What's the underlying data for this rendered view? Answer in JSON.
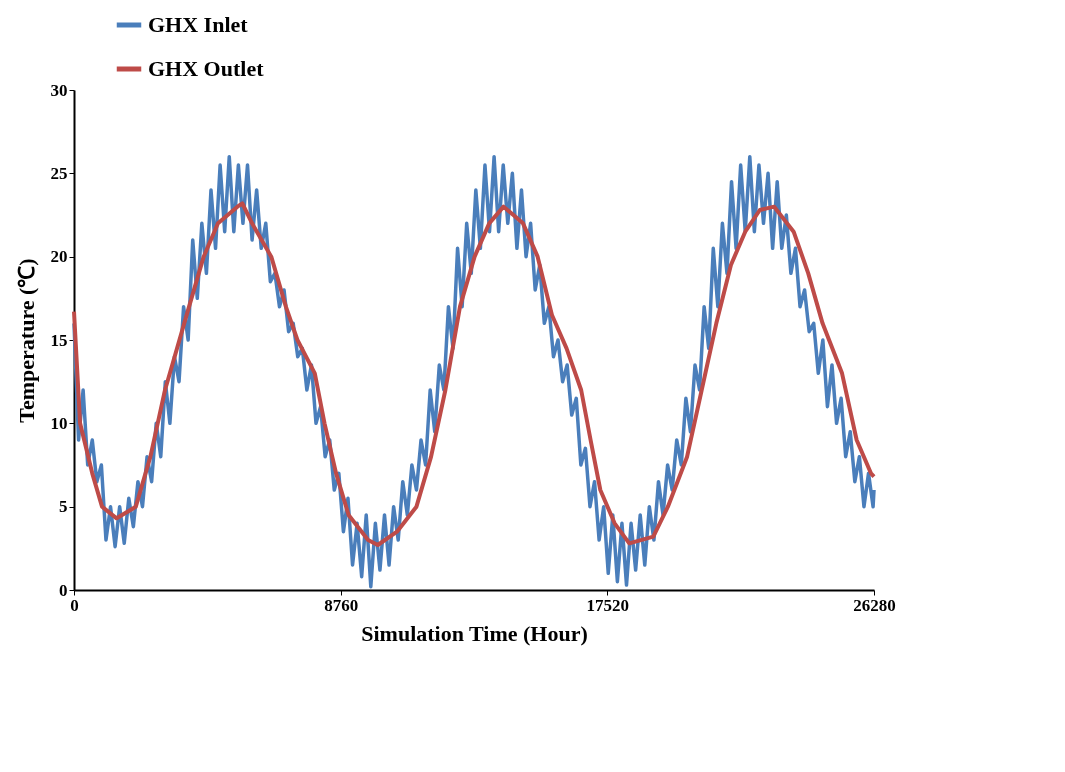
{
  "chart_data": {
    "type": "line",
    "xlabel": "Simulation Time (Hour)",
    "ylabel": "Temperature (℃)",
    "xlim": [
      0,
      26280
    ],
    "xticks": [
      0,
      8760,
      17520,
      26280
    ],
    "ylim": [
      0,
      30
    ],
    "yticks": [
      0,
      5,
      10,
      15,
      20,
      25,
      30
    ],
    "grid": false,
    "legend": "top left",
    "line_style": "solid",
    "marker": "none",
    "series": [
      {
        "name": "GHX Inlet",
        "color": "#4a7ebb",
        "x": [
          0,
          150,
          300,
          450,
          600,
          750,
          900,
          1050,
          1200,
          1350,
          1500,
          1650,
          1800,
          1950,
          2100,
          2250,
          2400,
          2550,
          2700,
          2850,
          3000,
          3150,
          3300,
          3450,
          3600,
          3750,
          3900,
          4050,
          4200,
          4350,
          4500,
          4650,
          4800,
          4950,
          5100,
          5250,
          5400,
          5550,
          5700,
          5850,
          6000,
          6150,
          6300,
          6450,
          6600,
          6750,
          6900,
          7050,
          7200,
          7350,
          7500,
          7650,
          7800,
          7950,
          8100,
          8250,
          8400,
          8550,
          8700,
          8850,
          9000,
          9150,
          9300,
          9450,
          9600,
          9750,
          9900,
          10050,
          10200,
          10350,
          10500,
          10650,
          10800,
          10950,
          11100,
          11250,
          11400,
          11550,
          11700,
          11850,
          12000,
          12150,
          12300,
          12450,
          12600,
          12750,
          12900,
          13050,
          13200,
          13350,
          13500,
          13650,
          13800,
          13950,
          14100,
          14250,
          14400,
          14550,
          14700,
          14850,
          15000,
          15150,
          15300,
          15450,
          15600,
          15750,
          15900,
          16050,
          16200,
          16350,
          16500,
          16650,
          16800,
          16950,
          17100,
          17250,
          17400,
          17550,
          17700,
          17850,
          18000,
          18150,
          18300,
          18450,
          18600,
          18750,
          18900,
          19050,
          19200,
          19350,
          19500,
          19650,
          19800,
          19950,
          20100,
          20250,
          20400,
          20550,
          20700,
          20850,
          21000,
          21150,
          21300,
          21450,
          21600,
          21750,
          21900,
          22050,
          22200,
          22350,
          22500,
          22650,
          22800,
          22950,
          23100,
          23250,
          23400,
          23550,
          23700,
          23850,
          24000,
          24150,
          24300,
          24450,
          24600,
          24750,
          24900,
          25050,
          25200,
          25350,
          25500,
          25650,
          25800,
          25950,
          26100,
          26250,
          26280
        ],
        "values": [
          16,
          9,
          12,
          7.5,
          9,
          6.5,
          7.5,
          3,
          5,
          2.6,
          5,
          2.8,
          5.5,
          3.8,
          6.5,
          5,
          8,
          6.5,
          10,
          8,
          12.5,
          10,
          14,
          12.5,
          17,
          15,
          21,
          17.5,
          22,
          19,
          24,
          20.5,
          25.5,
          21.5,
          26,
          21.5,
          25.5,
          22,
          25.5,
          21,
          24,
          20.5,
          22,
          18.5,
          19,
          17,
          18,
          15.5,
          16,
          14,
          14.5,
          12,
          13.5,
          10,
          11,
          8,
          9,
          6,
          7,
          3.5,
          5.5,
          1.5,
          4,
          0.8,
          4.5,
          0.2,
          4,
          1.2,
          4.5,
          1.5,
          5,
          3,
          6.5,
          4.5,
          7.5,
          6,
          9,
          7.5,
          12,
          9.5,
          13.5,
          12,
          17,
          14.5,
          20.5,
          17,
          22,
          19,
          24,
          20.5,
          25.5,
          21.5,
          26,
          21.5,
          25.5,
          22,
          25,
          20.5,
          24,
          20,
          22,
          18,
          19.5,
          16,
          17,
          14,
          15,
          12.5,
          13.5,
          10.5,
          11.5,
          7.5,
          8.5,
          5,
          6.5,
          3,
          5,
          1,
          4.5,
          0.5,
          4,
          0.3,
          4,
          1.2,
          4.5,
          1.5,
          5,
          3,
          6.5,
          4.5,
          7.5,
          6,
          9,
          7.5,
          11.5,
          9.5,
          13.5,
          12,
          17,
          14.5,
          20.5,
          17,
          22,
          19,
          24.5,
          20.5,
          25.5,
          21.5,
          26,
          21.5,
          25.5,
          22,
          25,
          20.5,
          24.5,
          20.5,
          22.5,
          19,
          20.5,
          17,
          18,
          15.5,
          16,
          13,
          15,
          11,
          13.5,
          10,
          11.5,
          8,
          9.5,
          6.5,
          8,
          5,
          7,
          5,
          6
        ]
      },
      {
        "name": "GHX Outlet",
        "color": "#be4b48",
        "x": [
          0,
          200,
          600,
          920,
          1400,
          2030,
          2510,
          2990,
          3780,
          4260,
          4730,
          5370,
          5530,
          5850,
          6480,
          6960,
          7340,
          7910,
          8230,
          8610,
          9020,
          9660,
          9980,
          10610,
          11250,
          11730,
          12200,
          12680,
          13160,
          13640,
          14110,
          14750,
          15230,
          15700,
          16180,
          16660,
          16970,
          17290,
          17760,
          18240,
          19030,
          19510,
          20140,
          20620,
          21100,
          21580,
          22050,
          22530,
          23000,
          23640,
          24120,
          24590,
          25230,
          25710,
          26180,
          26280
        ],
        "values": [
          16.7,
          10,
          7,
          5,
          4.3,
          5,
          8,
          12,
          17,
          20,
          22,
          23,
          23.2,
          22,
          20,
          17,
          15,
          13,
          10,
          7,
          4.5,
          3,
          2.7,
          3.5,
          5,
          8,
          12,
          17,
          20,
          22,
          23,
          22,
          20,
          16.5,
          14.5,
          12,
          9,
          6,
          4,
          2.8,
          3.2,
          5,
          8,
          12,
          16,
          19.5,
          21.5,
          22.8,
          23,
          21.5,
          19,
          16,
          13,
          9,
          7,
          6.8
        ]
      }
    ]
  }
}
